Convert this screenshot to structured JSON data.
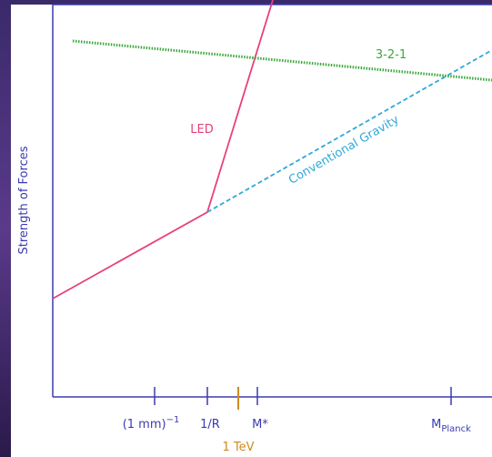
{
  "y_axis_label": "Strength of Forces",
  "x_ticks": [
    {
      "base": "(1 mm)",
      "sup": "−1"
    },
    {
      "base": "1/R"
    },
    {
      "base": "M*"
    },
    {
      "base": "M",
      "sub": "Planck"
    }
  ],
  "tev_label": "1 TeV",
  "curves": {
    "led": "LED",
    "unified": "3-2-1",
    "gravity": "Conventional Gravity"
  }
}
